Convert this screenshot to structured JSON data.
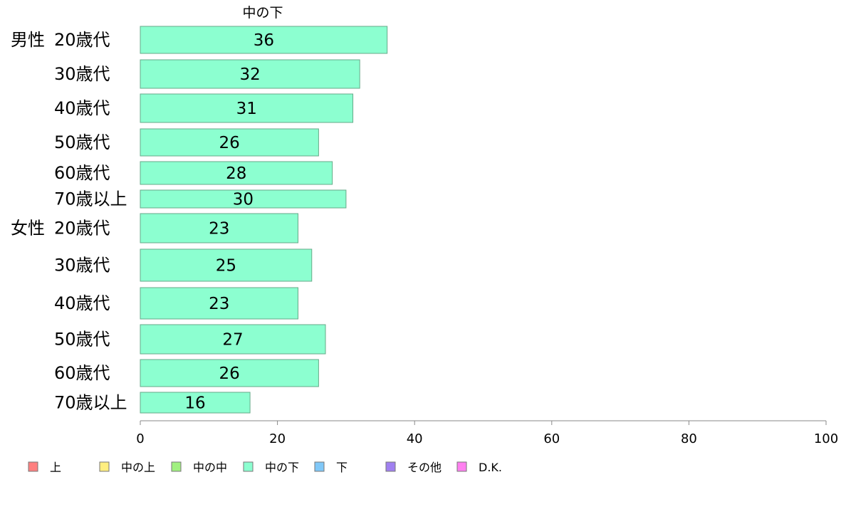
{
  "chart_data": {
    "type": "bar",
    "orientation": "horizontal",
    "title": "中の下",
    "xlim": [
      0,
      100
    ],
    "xticks": [
      0,
      20,
      40,
      60,
      80,
      100
    ],
    "grid": false,
    "legend_position": "bottom",
    "bar_color": "#8cffd0",
    "categories": [
      {
        "group": "男性",
        "label": "20歳代",
        "value": 36
      },
      {
        "group": "",
        "label": "30歳代",
        "value": 32
      },
      {
        "group": "",
        "label": "40歳代",
        "value": 31
      },
      {
        "group": "",
        "label": "50歳代",
        "value": 26
      },
      {
        "group": "",
        "label": "60歳代",
        "value": 28
      },
      {
        "group": "",
        "label": "70歳以上",
        "value": 30
      },
      {
        "group": "女性",
        "label": "20歳代",
        "value": 23
      },
      {
        "group": "",
        "label": "30歳代",
        "value": 25
      },
      {
        "group": "",
        "label": "40歳代",
        "value": 23
      },
      {
        "group": "",
        "label": "50歳代",
        "value": 27
      },
      {
        "group": "",
        "label": "60歳代",
        "value": 26
      },
      {
        "group": "",
        "label": "70歳以上",
        "value": 16
      }
    ],
    "legend": [
      {
        "label": "上",
        "color": "#ff8080"
      },
      {
        "label": "中の上",
        "color": "#ffee80"
      },
      {
        "label": "中の中",
        "color": "#a0f080"
      },
      {
        "label": "中の下",
        "color": "#8cffd0"
      },
      {
        "label": "下",
        "color": "#80c8f8"
      },
      {
        "label": "その他",
        "color": "#a080f0"
      },
      {
        "label": "D.K.",
        "color": "#ff80f0"
      }
    ]
  }
}
